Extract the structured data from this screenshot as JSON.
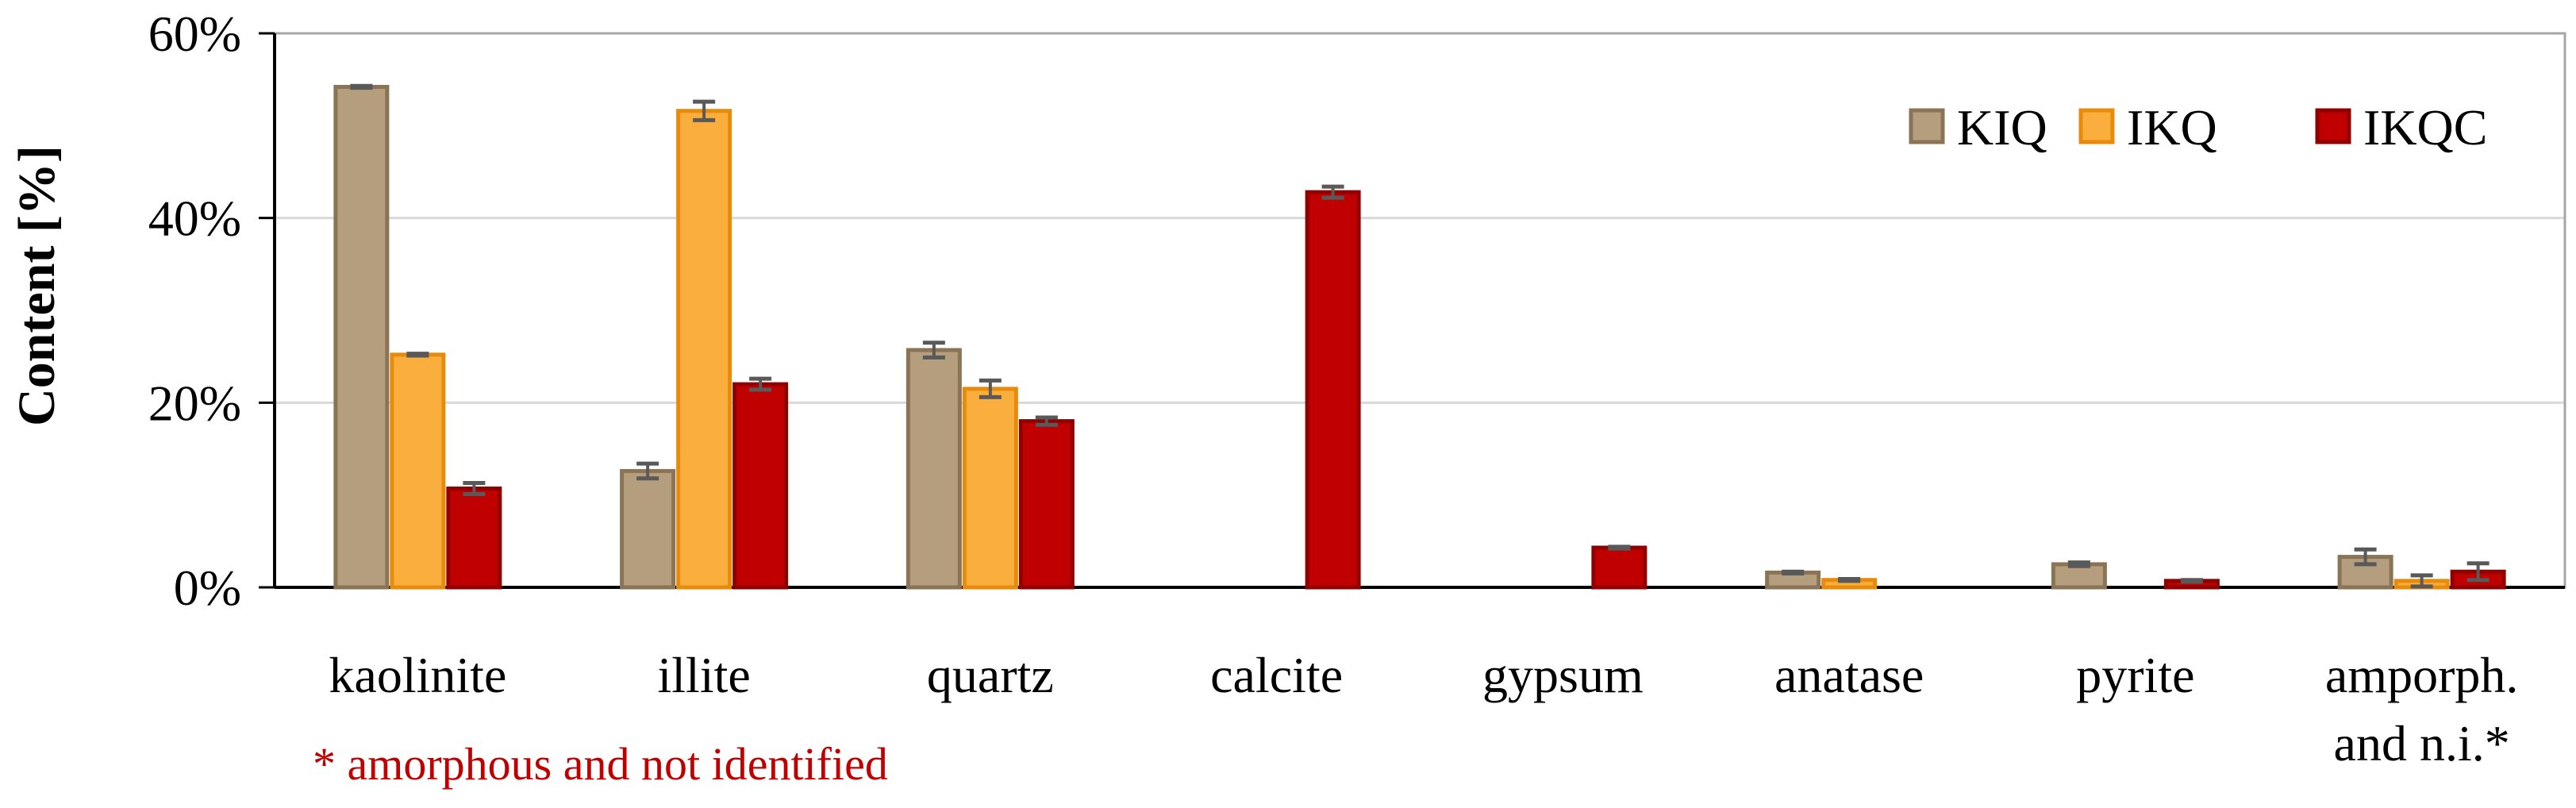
{
  "chart_data": {
    "type": "bar",
    "title": "",
    "xlabel": "",
    "ylabel": "Content [%]",
    "ylim": [
      0,
      60
    ],
    "yticks": [
      "0%",
      "20%",
      "40%",
      "60%"
    ],
    "grid": true,
    "legend_position": "top-right",
    "categories": [
      [
        "kaolinite"
      ],
      [
        "illite"
      ],
      [
        "quartz"
      ],
      [
        "calcite"
      ],
      [
        "gypsum"
      ],
      [
        "anatase"
      ],
      [
        "pyrite"
      ],
      [
        "amporph.",
        "and n.i.*"
      ]
    ],
    "series": [
      {
        "name": "KIQ",
        "fill": "#b59e7e",
        "stroke": "#8b7355",
        "values": [
          54.2,
          12.6,
          25.7,
          0,
          0,
          1.6,
          2.5,
          3.3
        ],
        "errors": [
          0.1,
          0.8,
          0.8,
          0,
          0,
          0.1,
          0.2,
          0.8
        ]
      },
      {
        "name": "IKQ",
        "fill": "#f9ae3e",
        "stroke": "#e88a0c",
        "values": [
          25.2,
          51.6,
          21.5,
          0,
          0,
          0.8,
          0,
          0.7
        ],
        "errors": [
          0.1,
          1.0,
          0.9,
          0,
          0,
          0.1,
          0,
          0.6
        ]
      },
      {
        "name": "IKQC",
        "fill": "#c00000",
        "stroke": "#900000",
        "values": [
          10.7,
          22.0,
          18.0,
          42.8,
          4.3,
          0,
          0.7,
          1.7
        ],
        "errors": [
          0.6,
          0.6,
          0.4,
          0.6,
          0.1,
          0,
          0.1,
          0.9
        ]
      }
    ],
    "footnote": "* amorphous and not identified"
  }
}
